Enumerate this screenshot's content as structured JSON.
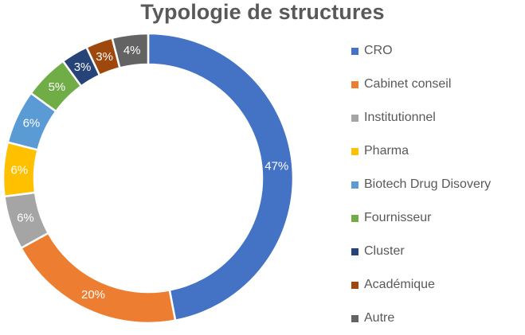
{
  "chart_data": {
    "type": "pie",
    "variant": "donut",
    "title": "Typologie de structures",
    "legend_position": "right",
    "slices": [
      {
        "label": "CRO",
        "value": 47,
        "display": "47%",
        "color": "#4472C4"
      },
      {
        "label": "Cabinet conseil",
        "value": 20,
        "display": "20%",
        "color": "#ED7D31"
      },
      {
        "label": "Institutionnel",
        "value": 6,
        "display": "6%",
        "color": "#A5A5A5"
      },
      {
        "label": "Pharma",
        "value": 6,
        "display": "6%",
        "color": "#FFC000"
      },
      {
        "label": "Biotech Drug Disovery",
        "value": 6,
        "display": "6%",
        "color": "#5B9BD5"
      },
      {
        "label": "Fournisseur",
        "value": 5,
        "display": "5%",
        "color": "#70AD47"
      },
      {
        "label": "Cluster",
        "value": 3,
        "display": "3%",
        "color": "#264478"
      },
      {
        "label": "Académique",
        "value": 3,
        "display": "3%",
        "color": "#9E480E"
      },
      {
        "label": "Autre",
        "value": 4,
        "display": "4%",
        "color": "#636363"
      }
    ]
  }
}
